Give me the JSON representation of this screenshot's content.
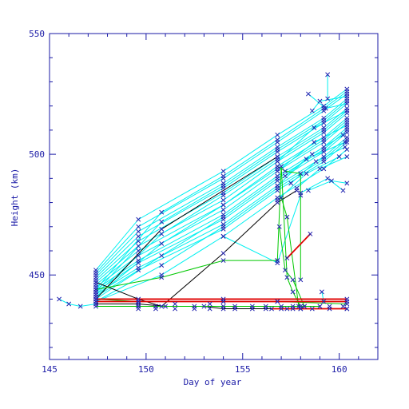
{
  "chart_data": {
    "type": "scatter",
    "title": "",
    "xlabel": "Day of year",
    "ylabel": "Height (km)",
    "xlim": [
      145,
      162
    ],
    "ylim": [
      415,
      550
    ],
    "x_ticks": [
      145,
      150,
      155,
      160
    ],
    "y_ticks": [
      450,
      500,
      550
    ],
    "x_tick_labels": [
      "145",
      "150",
      "155",
      "160"
    ],
    "y_tick_labels": [
      "450",
      "500",
      "550"
    ],
    "grid": false,
    "legend": "none",
    "colors": {
      "axes": "#1a1aa6",
      "marker": "#2323b0",
      "cyan": "#00f0f0",
      "green": "#00c800",
      "red": "#e00000",
      "black": "#000000"
    },
    "series": [
      {
        "color": "cyan",
        "x": [
          147.4,
          149.6,
          154.0,
          156.8,
          159.2,
          160.4
        ],
        "y": [
          452,
          473,
          493,
          508,
          520,
          527
        ]
      },
      {
        "color": "cyan",
        "x": [
          147.4,
          149.6,
          154.0,
          156.8,
          159.2,
          160.4
        ],
        "y": [
          451,
          470,
          490,
          505,
          518,
          525
        ]
      },
      {
        "color": "cyan",
        "x": [
          147.4,
          149.6,
          154.0,
          156.8,
          159.2,
          160.4
        ],
        "y": [
          450,
          468,
          488,
          503,
          515,
          523
        ]
      },
      {
        "color": "cyan",
        "x": [
          147.4,
          149.6,
          154.0,
          156.8,
          159.2,
          160.4
        ],
        "y": [
          449,
          466,
          486,
          501,
          513,
          521
        ]
      },
      {
        "color": "cyan",
        "x": [
          147.4,
          149.6,
          154.0,
          156.8,
          159.2,
          160.4
        ],
        "y": [
          448,
          464,
          484,
          499,
          511,
          519
        ]
      },
      {
        "color": "cyan",
        "x": [
          147.4,
          149.6,
          154.0,
          156.8,
          159.2,
          160.4
        ],
        "y": [
          447,
          462,
          481,
          497,
          509,
          517
        ]
      },
      {
        "color": "cyan",
        "x": [
          147.4,
          149.6,
          154.0,
          156.8,
          159.2,
          160.4
        ],
        "y": [
          446,
          460,
          479,
          495,
          507,
          515
        ]
      },
      {
        "color": "cyan",
        "x": [
          147.4,
          149.6,
          154.0,
          156.8,
          159.2,
          160.4
        ],
        "y": [
          445,
          458,
          477,
          493,
          505,
          513
        ]
      },
      {
        "color": "cyan",
        "x": [
          147.4,
          149.6,
          154.0,
          156.8,
          159.2,
          160.4
        ],
        "y": [
          444,
          456,
          475,
          491,
          503,
          511
        ]
      },
      {
        "color": "cyan",
        "x": [
          147.4,
          149.6,
          154.0,
          156.8,
          159.2,
          160.4
        ],
        "y": [
          443,
          455,
          473,
          489,
          501,
          509
        ]
      },
      {
        "color": "cyan",
        "x": [
          147.4,
          149.6,
          154.0,
          156.8,
          159.2,
          160.4
        ],
        "y": [
          442,
          453,
          471,
          487,
          499,
          507
        ]
      },
      {
        "color": "cyan",
        "x": [
          147.4,
          149.6,
          154.0,
          156.8,
          159.2,
          160.4
        ],
        "y": [
          441,
          452,
          469,
          485,
          497,
          505
        ]
      },
      {
        "color": "cyan",
        "x": [
          147.4,
          150.8,
          154.0,
          156.8,
          159.2,
          160.4
        ],
        "y": [
          444,
          476,
          491,
          506,
          519,
          526
        ]
      },
      {
        "color": "cyan",
        "x": [
          147.4,
          150.8,
          154.0,
          156.8,
          159.2,
          160.4
        ],
        "y": [
          443,
          472,
          487,
          502,
          514,
          522
        ]
      },
      {
        "color": "cyan",
        "x": [
          147.4,
          150.8,
          154.0,
          156.8,
          159.2,
          160.4
        ],
        "y": [
          442,
          467,
          483,
          498,
          510,
          518
        ]
      },
      {
        "color": "cyan",
        "x": [
          147.4,
          150.8,
          154.0,
          156.8,
          159.2,
          160.4
        ],
        "y": [
          441,
          463,
          479,
          494,
          506,
          514
        ]
      },
      {
        "color": "cyan",
        "x": [
          147.4,
          150.8,
          154.0,
          156.8,
          159.2,
          160.4
        ],
        "y": [
          440,
          458,
          474,
          490,
          502,
          510
        ]
      },
      {
        "color": "cyan",
        "x": [
          147.4,
          150.8,
          154.0,
          156.8,
          159.2,
          160.4
        ],
        "y": [
          439,
          454,
          470,
          486,
          498,
          506
        ]
      },
      {
        "color": "cyan",
        "x": [
          147.4,
          150.8,
          154.0,
          156.8,
          159.2,
          160.4
        ],
        "y": [
          439,
          450,
          466,
          482,
          494,
          502
        ]
      },
      {
        "color": "cyan",
        "x": [
          156.8,
          158.7,
          160.4
        ],
        "y": [
          497,
          511,
          518
        ]
      },
      {
        "color": "cyan",
        "x": [
          156.8,
          158.7,
          160.4
        ],
        "y": [
          493,
          505,
          512
        ]
      },
      {
        "color": "cyan",
        "x": [
          156.8,
          158.3,
          160.3
        ],
        "y": [
          487,
          498,
          505
        ]
      },
      {
        "color": "cyan",
        "x": [
          156.8,
          158.3,
          160.0
        ],
        "y": [
          481,
          492,
          499
        ]
      },
      {
        "color": "cyan",
        "x": [
          157.2,
          158.6,
          160.2
        ],
        "y": [
          491,
          500,
          508
        ]
      },
      {
        "color": "cyan",
        "x": [
          157.5,
          158.8,
          160.3
        ],
        "y": [
          488,
          497,
          503
        ]
      },
      {
        "color": "cyan",
        "x": [
          157.8,
          159.0,
          160.4
        ],
        "y": [
          486,
          494,
          499
        ]
      },
      {
        "color": "cyan",
        "x": [
          158.0,
          159.4,
          160.2
        ],
        "y": [
          484,
          490,
          485
        ]
      },
      {
        "color": "cyan",
        "x": [
          158.4,
          159.6,
          160.4
        ],
        "y": [
          485,
          489,
          488
        ]
      },
      {
        "color": "cyan",
        "x": [
          158.6,
          159.0,
          160.4
        ],
        "y": [
          518,
          522,
          524
        ]
      },
      {
        "color": "cyan",
        "x": [
          158.4,
          159.3,
          160.4
        ],
        "y": [
          525,
          519,
          521
        ]
      },
      {
        "color": "cyan",
        "x": [
          159.4,
          159.4
        ],
        "y": [
          533,
          523
        ]
      },
      {
        "color": "cyan",
        "x": [
          154.0,
          156.8,
          158.0
        ],
        "y": [
          466,
          455,
          483
        ]
      },
      {
        "color": "cyan",
        "x": [
          145.5,
          146.0,
          146.6,
          147.4
        ],
        "y": [
          440,
          438,
          437,
          438
        ]
      },
      {
        "color": "cyan",
        "x": [
          159.1,
          159.2
        ],
        "y": [
          443,
          439
        ]
      },
      {
        "color": "black",
        "x": [
          147.4,
          150.8,
          156.8
        ],
        "y": [
          440,
          469,
          499
        ]
      },
      {
        "color": "black",
        "x": [
          147.4,
          149.6,
          150.8,
          154.0,
          156.8,
          157.8
        ],
        "y": [
          447,
          440,
          437,
          459,
          480,
          485
        ]
      },
      {
        "color": "black",
        "x": [
          147.4,
          149.6,
          151.0,
          153.0,
          154.0,
          157.0,
          158.6,
          160.4
        ],
        "y": [
          438,
          438,
          437,
          437,
          436,
          436,
          436,
          436
        ]
      },
      {
        "color": "green",
        "x": [
          147.4,
          150.8,
          154.0,
          156.8
        ],
        "y": [
          444,
          449,
          456,
          456
        ]
      },
      {
        "color": "green",
        "x": [
          147.4,
          149.6,
          154.0,
          156.8,
          160.4
        ],
        "y": [
          440,
          439,
          439,
          439,
          438
        ]
      },
      {
        "color": "green",
        "x": [
          147.4,
          149.6,
          154.0,
          157.0,
          159.0
        ],
        "y": [
          437,
          437,
          437,
          437,
          437
        ]
      },
      {
        "color": "green",
        "x": [
          156.8,
          157.0,
          157.3,
          157.6,
          158.0
        ],
        "y": [
          456,
          495,
          449,
          443,
          437
        ]
      },
      {
        "color": "green",
        "x": [
          156.8,
          157.2,
          158.0,
          158.0
        ],
        "y": [
          495,
          493,
          492,
          448
        ]
      },
      {
        "color": "green",
        "x": [
          156.9,
          157.2,
          157.6,
          158.2,
          159.0
        ],
        "y": [
          470,
          452,
          448,
          437,
          437
        ]
      },
      {
        "color": "green",
        "x": [
          157.0,
          157.3,
          157.9,
          158.0
        ],
        "y": [
          482,
          474,
          437,
          436
        ]
      },
      {
        "color": "red",
        "x": [
          147.4,
          149.6,
          154.0,
          156.8,
          160.4
        ],
        "y": [
          439,
          439,
          439,
          439,
          439
        ]
      },
      {
        "color": "red",
        "x": [
          147.4,
          154.0,
          160.4
        ],
        "y": [
          440,
          440,
          440
        ]
      },
      {
        "color": "red",
        "x": [
          156.5,
          157.3,
          158.0,
          160.4
        ],
        "y": [
          436,
          436,
          436,
          436
        ]
      },
      {
        "color": "red",
        "x": [
          157.3,
          158.5
        ],
        "y": [
          457,
          467
        ]
      }
    ],
    "scatter_points": [
      {
        "x": 149.6,
        "y": [
          439,
          437,
          436
        ]
      },
      {
        "x": 150.5,
        "y": [
          437,
          436
        ]
      },
      {
        "x": 151.5,
        "y": [
          438,
          436
        ]
      },
      {
        "x": 152.5,
        "y": [
          437,
          436
        ]
      },
      {
        "x": 153.3,
        "y": [
          438,
          436
        ]
      },
      {
        "x": 154.6,
        "y": [
          437,
          436
        ]
      },
      {
        "x": 155.5,
        "y": [
          437,
          436
        ]
      },
      {
        "x": 156.2,
        "y": [
          437,
          436
        ]
      },
      {
        "x": 157.6,
        "y": [
          437,
          436
        ]
      },
      {
        "x": 158.2,
        "y": [
          437
        ]
      },
      {
        "x": 159.5,
        "y": [
          437,
          436
        ]
      },
      {
        "x": 160.2,
        "y": [
          437
        ]
      }
    ]
  }
}
